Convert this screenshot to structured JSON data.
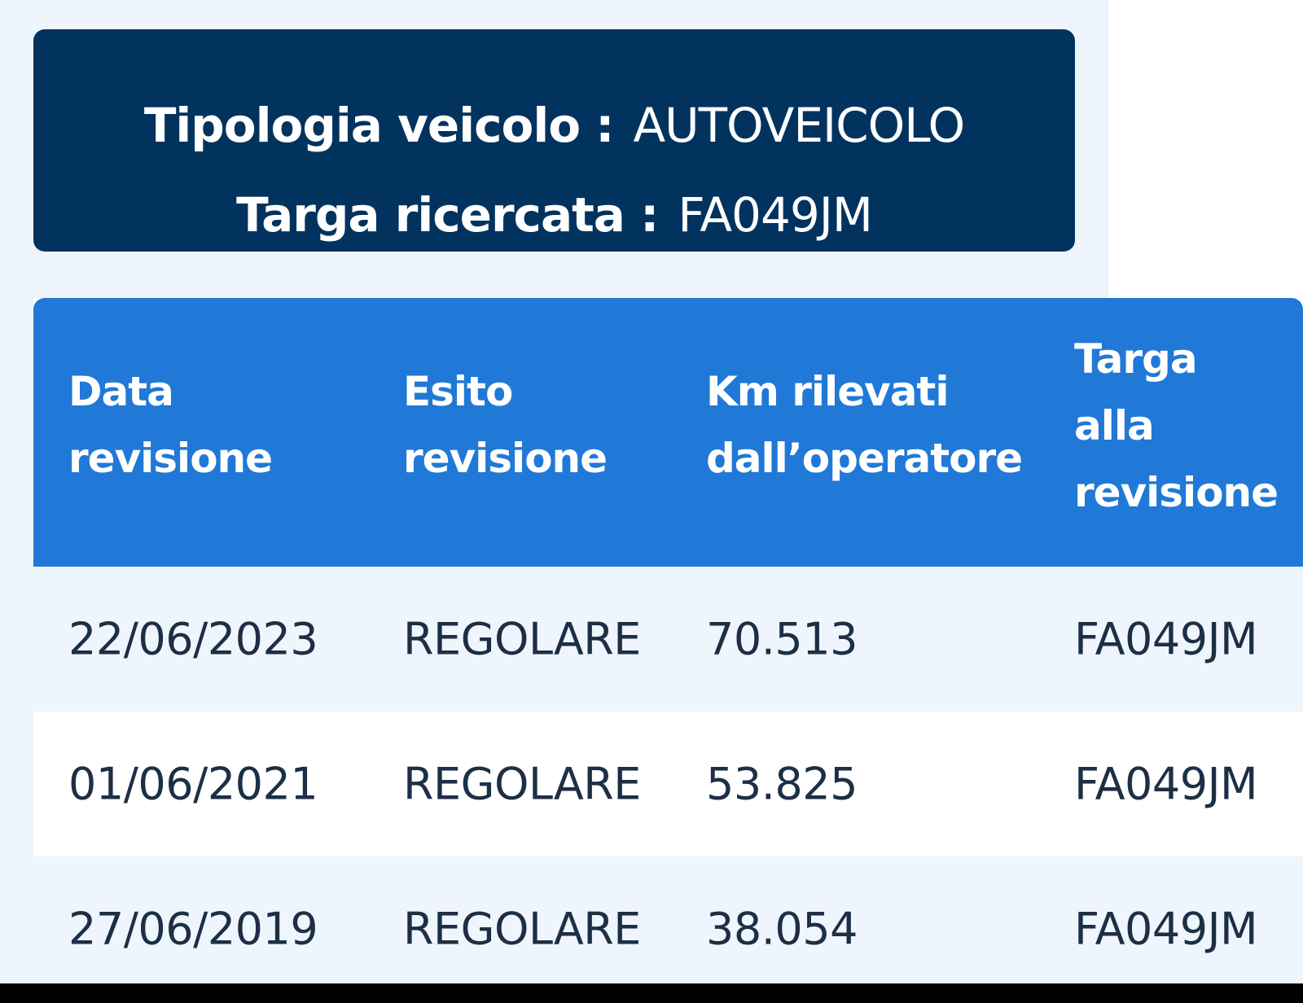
{
  "vehicle_info": {
    "type_label": "Tipologia veicolo :",
    "type_value": "AUTOVEICOLO",
    "plate_label": "Targa ricercata :",
    "plate_value": "FA049JM"
  },
  "table": {
    "headers": [
      [
        "Data",
        "revisione"
      ],
      [
        "Esito",
        "revisione"
      ],
      [
        "Km rilevati",
        "dall’operatore"
      ],
      [
        "Targa",
        "alla",
        "revisione"
      ]
    ],
    "rows": [
      [
        "22/06/2023",
        "REGOLARE",
        "70.513",
        "FA049JM"
      ],
      [
        "01/06/2021",
        "REGOLARE",
        "53.825",
        "FA049JM"
      ],
      [
        "27/06/2019",
        "REGOLARE",
        "38.054",
        "FA049JM"
      ]
    ]
  },
  "colors": {
    "info_box": "#02335f",
    "table_header": "#2079d6",
    "row_alt": "#eff5fc",
    "text": "#1c2f45"
  }
}
